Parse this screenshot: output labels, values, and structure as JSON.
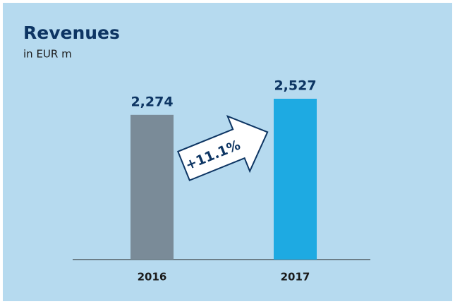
{
  "chart_data": {
    "type": "bar",
    "title": "Revenues",
    "subtitle": "in EUR m",
    "categories": [
      "2016",
      "2017"
    ],
    "values": [
      2274,
      2527
    ],
    "value_labels": [
      "2,274",
      "2,527"
    ],
    "colors": [
      "#7a8b98",
      "#1eaae2"
    ],
    "annotation": "+11.1%"
  }
}
